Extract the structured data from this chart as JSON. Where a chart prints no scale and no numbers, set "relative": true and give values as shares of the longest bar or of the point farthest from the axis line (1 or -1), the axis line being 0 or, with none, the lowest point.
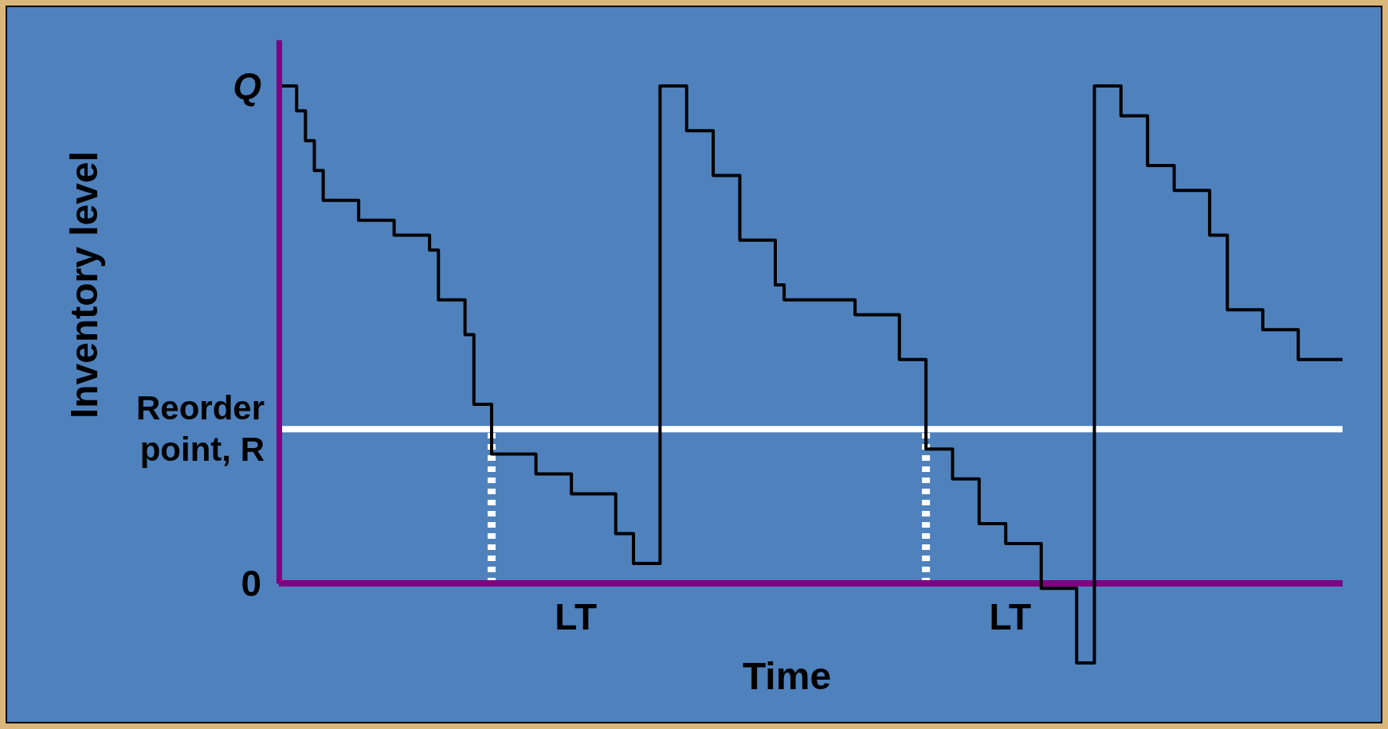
{
  "chart_data": {
    "type": "step",
    "xlabel": "Time",
    "ylabel": "Inventory level",
    "categories": [
      null,
      null,
      null,
      null,
      null,
      null,
      null,
      null,
      null,
      null,
      null,
      null,
      null,
      null,
      null,
      null,
      null,
      null,
      null,
      null,
      null,
      null,
      null,
      null,
      null,
      null,
      null,
      null,
      null,
      null,
      null,
      null,
      null,
      null,
      null,
      null,
      null,
      null,
      null,
      null,
      null,
      null,
      null,
      null,
      null,
      null,
      null,
      null,
      null,
      null,
      null,
      null,
      null,
      null,
      null,
      null,
      null,
      null,
      null,
      null,
      null,
      null,
      null,
      null,
      null,
      null,
      null,
      null,
      null,
      null,
      null,
      null,
      null,
      null,
      null,
      null,
      null,
      null,
      null,
      null,
      null,
      null,
      null,
      null,
      null,
      null,
      null,
      null,
      null,
      null,
      null,
      null,
      null,
      null,
      null,
      null,
      null,
      null,
      null,
      null,
      null,
      null,
      null,
      null,
      null,
      null,
      null,
      null,
      null,
      null,
      null,
      null,
      null,
      null,
      null,
      null,
      null,
      null,
      null,
      null,
      null
    ],
    "relative": true,
    "tick_labels": false,
    "marker": "none",
    "line_style": "solid",
    "series": [
      {
        "color": "#000000",
        "values": [
          1,
          1,
          0.95,
          0.89,
          0.83,
          0.77,
          0.77,
          0.77,
          0.77,
          0.73,
          0.73,
          0.73,
          0.73,
          0.7,
          0.7,
          0.7,
          0.7,
          0.67,
          0.57,
          0.57,
          0.57,
          0.5,
          0.36,
          0.36,
          0.26,
          0.26,
          0.26,
          0.26,
          0.26,
          0.22,
          0.22,
          0.22,
          0.22,
          0.18,
          0.18,
          0.18,
          0.18,
          0.18,
          0.1,
          0.1,
          0.04,
          0.04,
          0.04,
          1,
          1,
          1,
          0.91,
          0.91,
          0.91,
          0.82,
          0.82,
          0.82,
          0.69,
          0.69,
          0.69,
          0.69,
          0.6,
          0.57,
          0.57,
          0.57,
          0.57,
          0.57,
          0.57,
          0.57,
          0.57,
          0.54,
          0.54,
          0.54,
          0.54,
          0.54,
          0.45,
          0.45,
          0.45,
          0.27,
          0.27,
          0.27,
          0.21,
          0.21,
          0.21,
          0.12,
          0.12,
          0.12,
          0.08,
          0.08,
          0.08,
          0.08,
          -0.01,
          -0.01,
          -0.01,
          -0.01,
          -0.16,
          -0.16,
          1,
          1,
          1,
          0.94,
          0.94,
          0.94,
          0.84,
          0.84,
          0.84,
          0.79,
          0.79,
          0.79,
          0.79,
          0.7,
          0.7,
          0.55,
          0.55,
          0.55,
          0.55,
          0.51,
          0.51,
          0.51,
          0.51,
          0.45,
          0.45,
          0.45,
          0.45,
          0.45,
          0.45
        ]
      }
    ],
    "ref_lines": [
      {
        "axis": "y",
        "value": 0.31,
        "label": "Reorder point, R",
        "color": "#ffffff",
        "line_style": "solid"
      },
      {
        "axis": "y",
        "value": 0,
        "color": "#800080",
        "line_style": "solid"
      }
    ],
    "annotations": [
      "Q",
      "0",
      "LT",
      "LT"
    ]
  }
}
